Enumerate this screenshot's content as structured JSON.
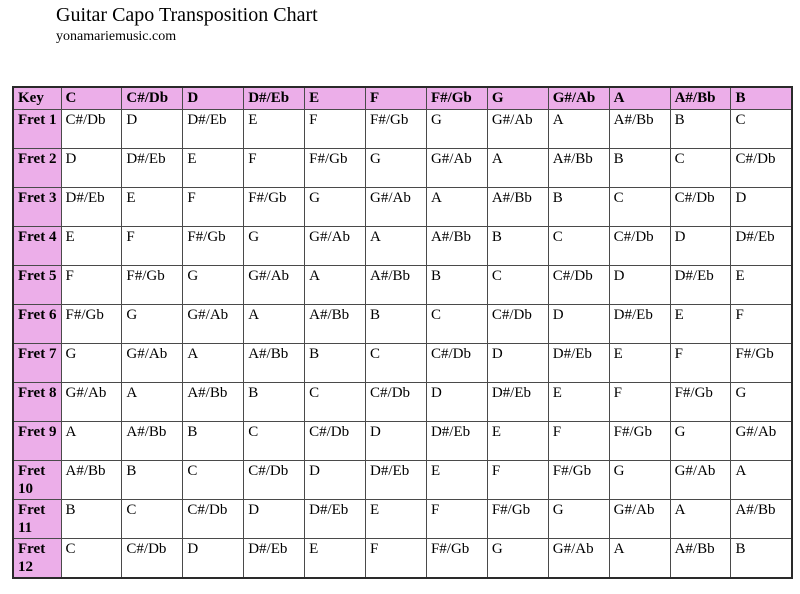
{
  "page": {
    "title": "Guitar Capo Transposition Chart",
    "subtitle": "yonamariemusic.com"
  },
  "colors": {
    "header_bg": "#ECAEE9",
    "grid_border": "#4a4a4a",
    "outer_border": "#2a2a2a",
    "page_bg": "#ffffff",
    "text": "#000000"
  },
  "table": {
    "key_header": "Key",
    "columns": [
      "C",
      "C#/Db",
      "D",
      "D#/Eb",
      "E",
      "F",
      "F#/Gb",
      "G",
      "G#/Ab",
      "A",
      "A#/Bb",
      "B"
    ],
    "rows": [
      {
        "label": "Fret 1",
        "cells": [
          "C#/Db",
          "D",
          "D#/Eb",
          "E",
          "F",
          "F#/Gb",
          "G",
          "G#/Ab",
          "A",
          "A#/Bb",
          "B",
          "C"
        ]
      },
      {
        "label": "Fret 2",
        "cells": [
          "D",
          "D#/Eb",
          "E",
          "F",
          "F#/Gb",
          "G",
          "G#/Ab",
          "A",
          "A#/Bb",
          "B",
          "C",
          "C#/Db"
        ]
      },
      {
        "label": "Fret 3",
        "cells": [
          "D#/Eb",
          "E",
          "F",
          "F#/Gb",
          "G",
          "G#/Ab",
          "A",
          "A#/Bb",
          "B",
          "C",
          "C#/Db",
          "D"
        ]
      },
      {
        "label": "Fret 4",
        "cells": [
          "E",
          "F",
          "F#/Gb",
          "G",
          "G#/Ab",
          "A",
          "A#/Bb",
          "B",
          "C",
          "C#/Db",
          "D",
          "D#/Eb"
        ]
      },
      {
        "label": "Fret 5",
        "cells": [
          "F",
          "F#/Gb",
          "G",
          "G#/Ab",
          "A",
          "A#/Bb",
          "B",
          "C",
          "C#/Db",
          "D",
          "D#/Eb",
          "E"
        ]
      },
      {
        "label": "Fret 6",
        "cells": [
          "F#/Gb",
          "G",
          "G#/Ab",
          "A",
          "A#/Bb",
          "B",
          "C",
          "C#/Db",
          "D",
          "D#/Eb",
          "E",
          "F"
        ]
      },
      {
        "label": "Fret 7",
        "cells": [
          "G",
          "G#/Ab",
          "A",
          "A#/Bb",
          "B",
          "C",
          "C#/Db",
          "D",
          "D#/Eb",
          "E",
          "F",
          "F#/Gb"
        ]
      },
      {
        "label": "Fret 8",
        "cells": [
          "G#/Ab",
          "A",
          "A#/Bb",
          "B",
          "C",
          "C#/Db",
          "D",
          "D#/Eb",
          "E",
          "F",
          "F#/Gb",
          "G"
        ]
      },
      {
        "label": "Fret 9",
        "cells": [
          "A",
          "A#/Bb",
          "B",
          "C",
          "C#/Db",
          "D",
          "D#/Eb",
          "E",
          "F",
          "F#/Gb",
          "G",
          "G#/Ab"
        ]
      },
      {
        "label": "Fret 10",
        "cells": [
          "A#/Bb",
          "B",
          "C",
          "C#/Db",
          "D",
          "D#/Eb",
          "E",
          "F",
          "F#/Gb",
          "G",
          "G#/Ab",
          "A"
        ]
      },
      {
        "label": "Fret 11",
        "cells": [
          "B",
          "C",
          "C#/Db",
          "D",
          "D#/Eb",
          "E",
          "F",
          "F#/Gb",
          "G",
          "G#/Ab",
          "A",
          "A#/Bb"
        ]
      },
      {
        "label": "Fret 12",
        "cells": [
          "C",
          "C#/Db",
          "D",
          "D#/Eb",
          "E",
          "F",
          "F#/Gb",
          "G",
          "G#/Ab",
          "A",
          "A#/Bb",
          "B"
        ]
      }
    ]
  }
}
